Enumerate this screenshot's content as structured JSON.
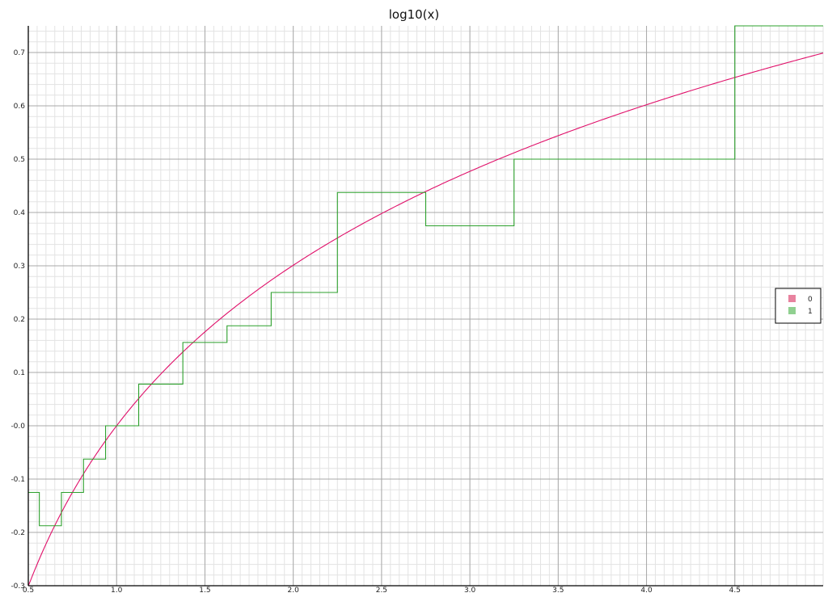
{
  "chart_data": {
    "type": "line",
    "title": "log10(x)",
    "xlabel": "",
    "ylabel": "",
    "xlim": [
      0.5,
      5.0
    ],
    "ylim": [
      -0.3,
      0.75
    ],
    "x_ticks": [
      "0.5",
      "1.0",
      "1.5",
      "2.0",
      "2.5",
      "3.0",
      "3.5",
      "4.0",
      "4.5"
    ],
    "y_ticks": [
      "-0.3",
      "-0.2",
      "-0.1",
      "-0.0",
      "0.1",
      "0.2",
      "0.3",
      "0.4",
      "0.5",
      "0.6",
      "0.7"
    ],
    "grid": true,
    "legend_position": "right",
    "series": [
      {
        "name": "0",
        "color": "#e0106a",
        "legend_color": "#e8829f",
        "kind": "curve",
        "function": "log10(x)"
      },
      {
        "name": "1",
        "color": "#2ca02c",
        "legend_color": "#90d090",
        "kind": "step",
        "x": [
          0.5,
          0.5625,
          0.6875,
          0.8125,
          0.9375,
          1.125,
          1.375,
          1.625,
          1.875,
          2.25,
          2.75,
          3.25,
          4.5,
          5.0
        ],
        "values": [
          -0.125,
          -0.1875,
          -0.125,
          -0.0625,
          0.0,
          0.078125,
          0.15625,
          0.1875,
          0.25,
          0.4375,
          0.375,
          0.5,
          0.75,
          0.75
        ]
      }
    ]
  }
}
